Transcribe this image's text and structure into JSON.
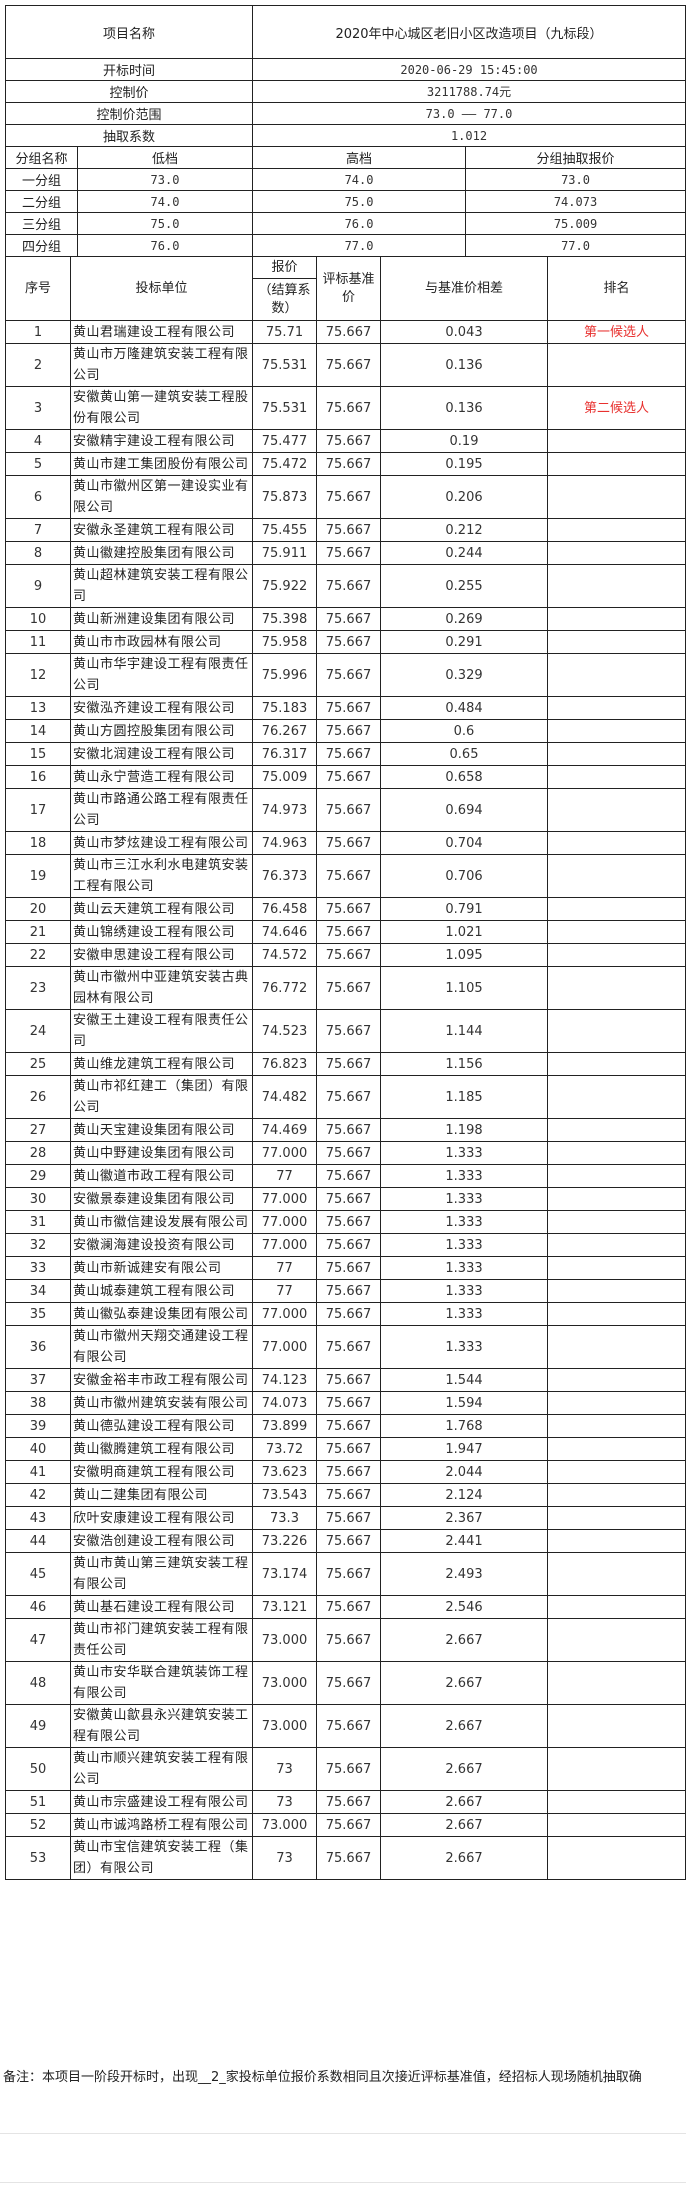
{
  "project": {
    "name_label": "项目名称",
    "name_value": "2020年中心城区老旧小区改造项目（九标段）",
    "open_time_label": "开标时间",
    "open_time_value": "2020-06-29 15:45:00",
    "control_price_label": "控制价",
    "control_price_value": "3211788.74元",
    "control_range_label": "控制价范围",
    "control_range_value": "73.0 —— 77.0",
    "coefficient_label": "抽取系数",
    "coefficient_value": "1.012"
  },
  "groups": {
    "headers": [
      "分组名称",
      "低档",
      "高档",
      "分组抽取报价"
    ],
    "rows": [
      [
        "一分组",
        "73.0",
        "74.0",
        "73.0"
      ],
      [
        "二分组",
        "74.0",
        "75.0",
        "74.073"
      ],
      [
        "三分组",
        "75.0",
        "76.0",
        "75.009"
      ],
      [
        "四分组",
        "76.0",
        "77.0",
        "77.0"
      ]
    ]
  },
  "table": {
    "headers": {
      "seq": "序号",
      "bidder": "投标单位",
      "price_top": "报价",
      "price_bottom": "（结算系数）",
      "base": "评标基准价",
      "diff": "与基准价相差",
      "rank": "排名"
    },
    "rows": [
      [
        "1",
        "黄山君瑞建设工程有限公司",
        "75.71",
        "75.667",
        "0.043",
        "第一候选人"
      ],
      [
        "2",
        "黄山市万隆建筑安装工程有限公司",
        "75.531",
        "75.667",
        "0.136",
        ""
      ],
      [
        "3",
        "安徽黄山第一建筑安装工程股份有限公司",
        "75.531",
        "75.667",
        "0.136",
        "第二候选人"
      ],
      [
        "4",
        "安徽精宇建设工程有限公司",
        "75.477",
        "75.667",
        "0.19",
        ""
      ],
      [
        "5",
        "黄山市建工集团股份有限公司",
        "75.472",
        "75.667",
        "0.195",
        ""
      ],
      [
        "6",
        "黄山市徽州区第一建设实业有限公司",
        "75.873",
        "75.667",
        "0.206",
        ""
      ],
      [
        "7",
        "安徽永圣建筑工程有限公司",
        "75.455",
        "75.667",
        "0.212",
        ""
      ],
      [
        "8",
        "黄山徽建控股集团有限公司",
        "75.911",
        "75.667",
        "0.244",
        ""
      ],
      [
        "9",
        "黄山超林建筑安装工程有限公司",
        "75.922",
        "75.667",
        "0.255",
        ""
      ],
      [
        "10",
        "黄山新洲建设集团有限公司",
        "75.398",
        "75.667",
        "0.269",
        ""
      ],
      [
        "11",
        "黄山市市政园林有限公司",
        "75.958",
        "75.667",
        "0.291",
        ""
      ],
      [
        "12",
        "黄山市华宇建设工程有限责任公司",
        "75.996",
        "75.667",
        "0.329",
        ""
      ],
      [
        "13",
        "安徽泓齐建设工程有限公司",
        "75.183",
        "75.667",
        "0.484",
        ""
      ],
      [
        "14",
        "黄山方圆控股集团有限公司",
        "76.267",
        "75.667",
        "0.6",
        ""
      ],
      [
        "15",
        "安徽北润建设工程有限公司",
        "76.317",
        "75.667",
        "0.65",
        ""
      ],
      [
        "16",
        "黄山永宁营造工程有限公司",
        "75.009",
        "75.667",
        "0.658",
        ""
      ],
      [
        "17",
        "黄山市路通公路工程有限责任公司",
        "74.973",
        "75.667",
        "0.694",
        ""
      ],
      [
        "18",
        "黄山市梦炫建设工程有限公司",
        "74.963",
        "75.667",
        "0.704",
        ""
      ],
      [
        "19",
        "黄山市三江水利水电建筑安装工程有限公司",
        "76.373",
        "75.667",
        "0.706",
        ""
      ],
      [
        "20",
        "黄山云天建筑工程有限公司",
        "76.458",
        "75.667",
        "0.791",
        ""
      ],
      [
        "21",
        "黄山锦绣建设工程有限公司",
        "74.646",
        "75.667",
        "1.021",
        ""
      ],
      [
        "22",
        "安徽申思建设工程有限公司",
        "74.572",
        "75.667",
        "1.095",
        ""
      ],
      [
        "23",
        "黄山市徽州中亚建筑安装古典园林有限公司",
        "76.772",
        "75.667",
        "1.105",
        ""
      ],
      [
        "24",
        "安徽王土建设工程有限责任公司",
        "74.523",
        "75.667",
        "1.144",
        ""
      ],
      [
        "25",
        "黄山维龙建筑工程有限公司",
        "76.823",
        "75.667",
        "1.156",
        ""
      ],
      [
        "26",
        "黄山市祁红建工（集团）有限公司",
        "74.482",
        "75.667",
        "1.185",
        ""
      ],
      [
        "27",
        "黄山天宝建设集团有限公司",
        "74.469",
        "75.667",
        "1.198",
        ""
      ],
      [
        "28",
        "黄山中野建设集团有限公司",
        "77.000",
        "75.667",
        "1.333",
        ""
      ],
      [
        "29",
        "黄山徽道市政工程有限公司",
        "77",
        "75.667",
        "1.333",
        ""
      ],
      [
        "30",
        "安徽景泰建设集团有限公司",
        "77.000",
        "75.667",
        "1.333",
        ""
      ],
      [
        "31",
        "黄山市徽信建设发展有限公司",
        "77.000",
        "75.667",
        "1.333",
        ""
      ],
      [
        "32",
        "安徽澜海建设投资有限公司",
        "77.000",
        "75.667",
        "1.333",
        ""
      ],
      [
        "33",
        "黄山市新诚建安有限公司",
        "77",
        "75.667",
        "1.333",
        ""
      ],
      [
        "34",
        "黄山城泰建筑工程有限公司",
        "77",
        "75.667",
        "1.333",
        ""
      ],
      [
        "35",
        "黄山徽弘泰建设集团有限公司",
        "77.000",
        "75.667",
        "1.333",
        ""
      ],
      [
        "36",
        "黄山市徽州天翔交通建设工程有限公司",
        "77.000",
        "75.667",
        "1.333",
        ""
      ],
      [
        "37",
        "安徽金裕丰市政工程有限公司",
        "74.123",
        "75.667",
        "1.544",
        ""
      ],
      [
        "38",
        "黄山市徽州建筑安装有限公司",
        "74.073",
        "75.667",
        "1.594",
        ""
      ],
      [
        "39",
        "黄山德弘建设工程有限公司",
        "73.899",
        "75.667",
        "1.768",
        ""
      ],
      [
        "40",
        "黄山徽腾建筑工程有限公司",
        "73.72",
        "75.667",
        "1.947",
        ""
      ],
      [
        "41",
        "安徽明商建筑工程有限公司",
        "73.623",
        "75.667",
        "2.044",
        ""
      ],
      [
        "42",
        "黄山二建集团有限公司",
        "73.543",
        "75.667",
        "2.124",
        ""
      ],
      [
        "43",
        "欣叶安康建设工程有限公司",
        "73.3",
        "75.667",
        "2.367",
        ""
      ],
      [
        "44",
        "安徽浩创建设工程有限公司",
        "73.226",
        "75.667",
        "2.441",
        ""
      ],
      [
        "45",
        "黄山市黄山第三建筑安装工程有限公司",
        "73.174",
        "75.667",
        "2.493",
        ""
      ],
      [
        "46",
        "黄山基石建设工程有限公司",
        "73.121",
        "75.667",
        "2.546",
        ""
      ],
      [
        "47",
        "黄山市祁门建筑安装工程有限责任公司",
        "73.000",
        "75.667",
        "2.667",
        ""
      ],
      [
        "48",
        "黄山市安华联合建筑装饰工程有限公司",
        "73.000",
        "75.667",
        "2.667",
        ""
      ],
      [
        "49",
        "安徽黄山歙县永兴建筑安装工程有限公司",
        "73.000",
        "75.667",
        "2.667",
        ""
      ],
      [
        "50",
        "黄山市顺兴建筑安装工程有限公司",
        "73",
        "75.667",
        "2.667",
        ""
      ],
      [
        "51",
        "黄山市宗盛建设工程有限公司",
        "73",
        "75.667",
        "2.667",
        ""
      ],
      [
        "52",
        "黄山市诚鸿路桥工程有限公司",
        "73.000",
        "75.667",
        "2.667",
        ""
      ],
      [
        "53",
        "黄山市宝信建筑安装工程（集团）有限公司",
        "73",
        "75.667",
        "2.667",
        ""
      ]
    ]
  },
  "note": "备注：本项目一阶段开标时，出现__2_家投标单位报价系数相同且次接近评标基准值，经招标人现场随机抽取确",
  "colors": {
    "candidate_text": "#e8312f",
    "border": "#222222"
  }
}
